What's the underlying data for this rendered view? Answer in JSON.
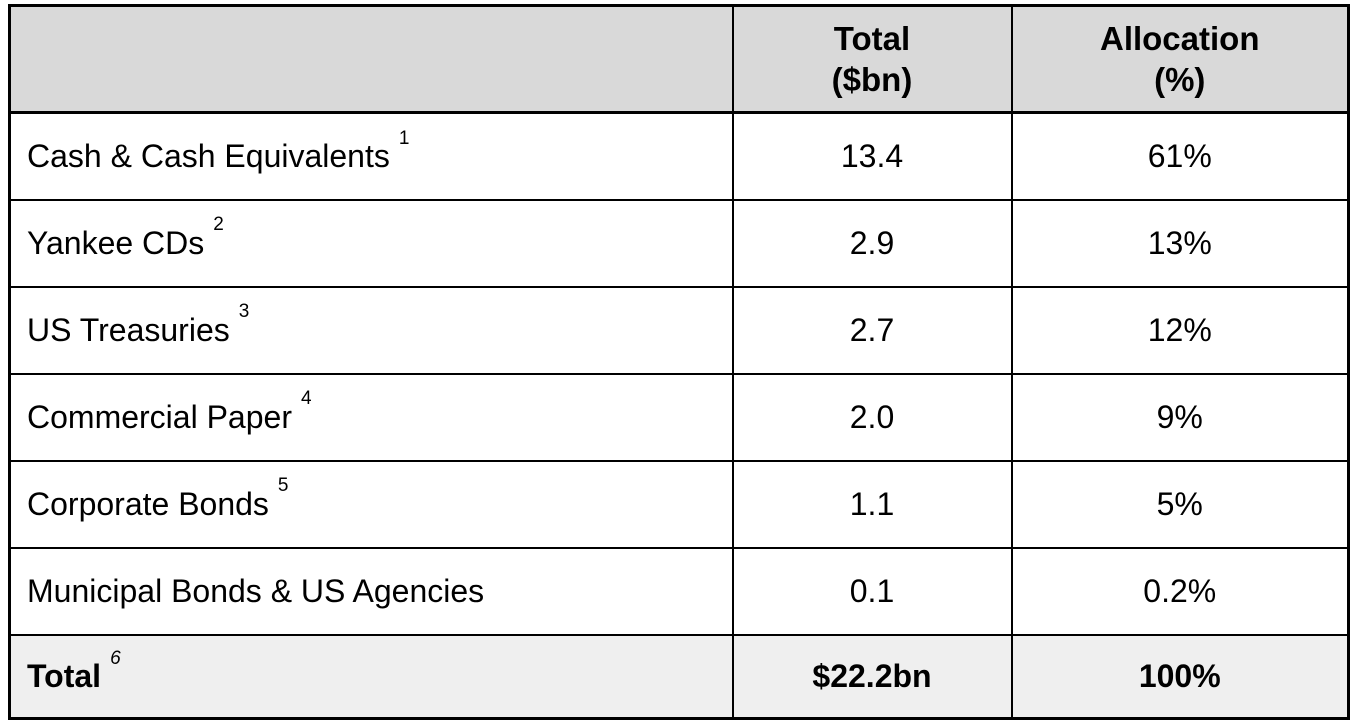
{
  "table": {
    "header": {
      "row_label_column": "",
      "total": {
        "line1": "Total",
        "line2": "($bn)"
      },
      "allocation": {
        "line1": "Allocation",
        "line2": "(%)"
      }
    },
    "rows": [
      {
        "label": "Cash & Cash Equivalents",
        "sup": "1",
        "total": "13.4",
        "alloc": "61%"
      },
      {
        "label": "Yankee CDs",
        "sup": "2",
        "total": "2.9",
        "alloc": "13%"
      },
      {
        "label": "US Treasuries",
        "sup": "3",
        "total": "2.7",
        "alloc": "12%"
      },
      {
        "label": "Commercial Paper",
        "sup": "4",
        "total": "2.0",
        "alloc": "9%"
      },
      {
        "label": "Corporate Bonds",
        "sup": "5",
        "total": "1.1",
        "alloc": "5%"
      },
      {
        "label": "Municipal Bonds & US Agencies",
        "sup": "",
        "total": "0.1",
        "alloc": "0.2%"
      }
    ],
    "footer": {
      "label": "Total",
      "sup": "6",
      "total": "$22.2bn",
      "alloc": "100%"
    },
    "colors": {
      "header_bg": "#d9d9d9",
      "footer_bg": "#efefef",
      "border": "#000000",
      "text": "#000000",
      "row_bg": "#ffffff"
    }
  }
}
